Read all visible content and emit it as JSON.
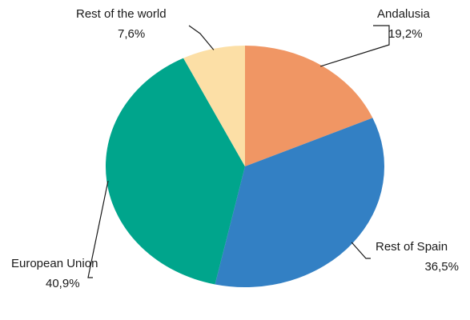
{
  "chart_data": {
    "type": "pie",
    "slices": [
      {
        "label": "Andalusia",
        "value_label": "19,2%",
        "value": 19.2,
        "color": "#F09664"
      },
      {
        "label": "Rest of Spain",
        "value_label": "36,5%",
        "value": 36.5,
        "color": "#3380C4"
      },
      {
        "label": "European Union",
        "value_label": "40,9%",
        "value": 40.9,
        "color": "#00A58C"
      },
      {
        "label": "Rest of the world",
        "value_label": "7,6%",
        "value": 7.6,
        "color": "#FCDFA6"
      }
    ],
    "start": "12 o'clock",
    "direction": "clockwise",
    "legend": "none"
  }
}
